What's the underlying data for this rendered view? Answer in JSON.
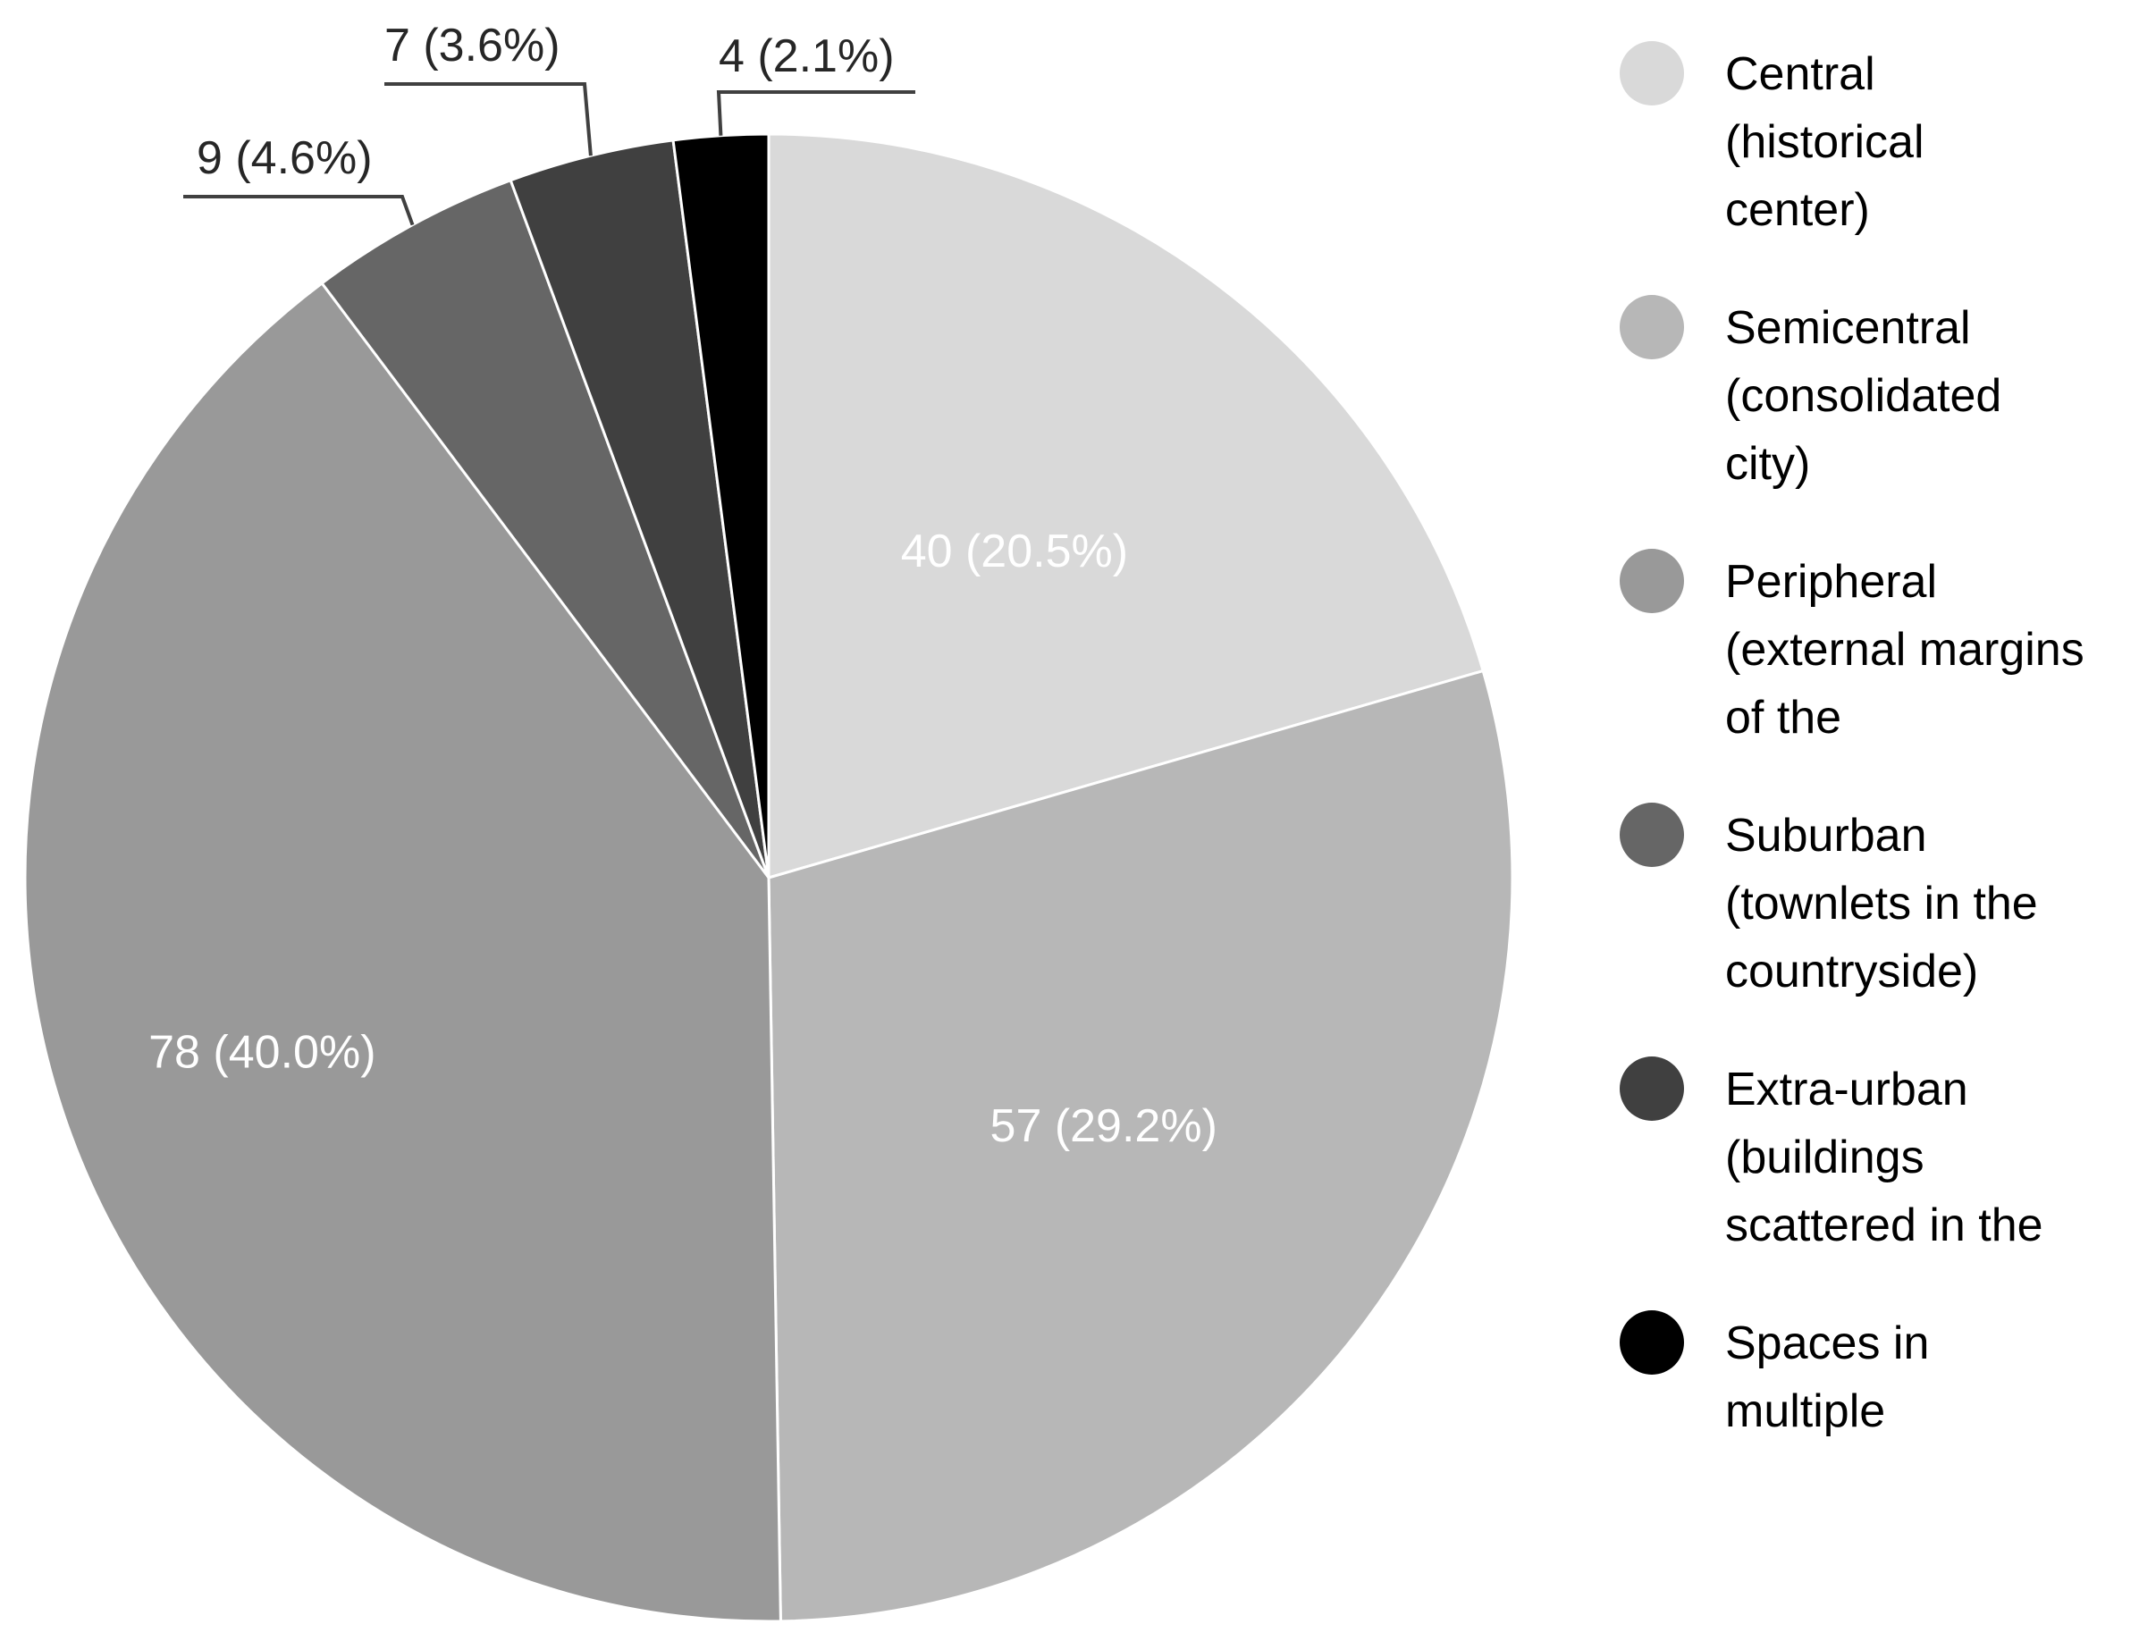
{
  "chart_data": {
    "type": "pie",
    "title": "",
    "start_angle_deg": 0,
    "direction": "clockwise",
    "legend_position": "right",
    "slices": [
      {
        "name": "Central (historical center)",
        "legend_lines": [
          "Central",
          "(historical",
          "center)"
        ],
        "value": 40,
        "label": "40 (20.5%)",
        "color": "#d9d9d9",
        "label_style": "inside"
      },
      {
        "name": "Semicentral (consolidated city)",
        "legend_lines": [
          "Semicentral",
          "(consolidated",
          "city)"
        ],
        "value": 57,
        "label": "57 (29.2%)",
        "color": "#b7b7b7",
        "label_style": "inside"
      },
      {
        "name": "Peripheral (external margins of the",
        "legend_lines": [
          "Peripheral",
          "(external margins",
          "of the"
        ],
        "value": 78,
        "label": "78 (40.0%)",
        "color": "#999999",
        "label_style": "inside"
      },
      {
        "name": "Suburban (townlets in the countryside)",
        "legend_lines": [
          "Suburban",
          "(townlets in the",
          "countryside)"
        ],
        "value": 9,
        "label": "9 (4.6%)",
        "color": "#666666",
        "label_style": "callout"
      },
      {
        "name": "Extra-urban (buildings scattered in the",
        "legend_lines": [
          "Extra-urban",
          "(buildings",
          "scattered in the"
        ],
        "value": 7,
        "label": "7 (3.6%)",
        "color": "#404040",
        "label_style": "callout"
      },
      {
        "name": "Spaces in multiple",
        "legend_lines": [
          "Spaces in",
          "multiple"
        ],
        "value": 4,
        "label": "4 (2.1%)",
        "color": "#000000",
        "label_style": "callout"
      }
    ]
  }
}
